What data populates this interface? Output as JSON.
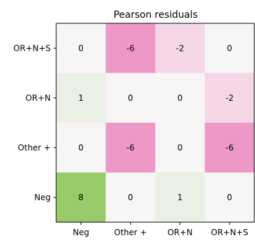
{
  "chart_data": {
    "type": "heatmap",
    "title": "Pearson residuals",
    "x_categories": [
      "Neg",
      "Other +",
      "OR+N",
      "OR+N+S"
    ],
    "y_categories": [
      "OR+N+S",
      "OR+N",
      "Other +",
      "Neg"
    ],
    "values": [
      [
        0,
        -6,
        -2,
        0
      ],
      [
        1,
        0,
        0,
        -2
      ],
      [
        0,
        -6,
        0,
        -6
      ],
      [
        8,
        0,
        1,
        0
      ]
    ],
    "colormap": "PiYG",
    "color_range": [
      -8,
      8
    ],
    "grid": false,
    "legend": "none"
  }
}
